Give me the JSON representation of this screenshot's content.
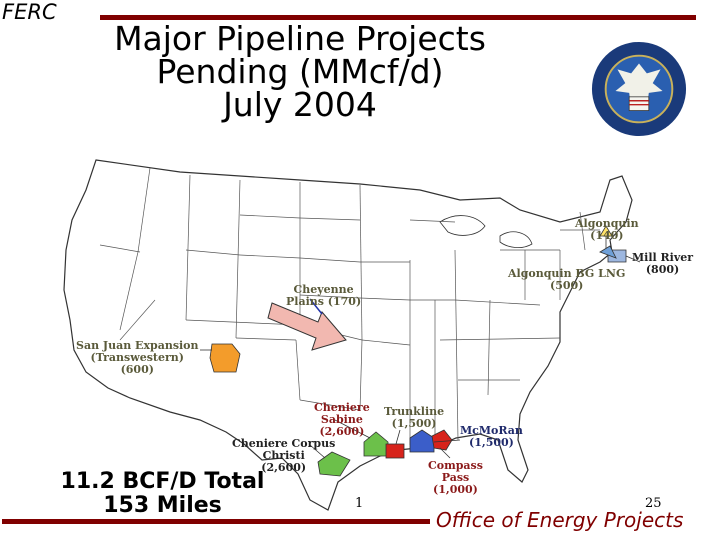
{
  "header": {
    "org": "FERC",
    "title_lines": [
      "Major Pipeline Projects",
      "Pending (MMcf/d)",
      "July 2004"
    ]
  },
  "seal": {
    "icon": "doe-ferc-seal-icon",
    "color": "#1a3a7a"
  },
  "projects": {
    "algonquin": {
      "name": "Algonquin",
      "value": "(140)"
    },
    "mill_river": {
      "name": "Mill River",
      "value": "(800)"
    },
    "algonquin_bg": {
      "name": "Algonquin BG LNG",
      "value": "(500)"
    },
    "cheyenne": {
      "line1": "Cheyenne",
      "line2": "Plains (170)"
    },
    "san_juan": {
      "line1": "San Juan Expansion",
      "line2": "(Transwestern)",
      "value": "(600)"
    },
    "cheniere_sabine": {
      "line1": "Cheniere",
      "line2": "Sabine",
      "value": "(2,600)"
    },
    "trunkline": {
      "name": "Trunkline",
      "value": "(1,500)"
    },
    "mcmoran": {
      "name": "McMoRan",
      "value": "(1,500)"
    },
    "cheniere_cc": {
      "line1": "Cheniere Corpus",
      "line2": "Christi",
      "value": "(2,600)"
    },
    "compass": {
      "line1": "Compass",
      "line2": "Pass",
      "value": "(1,000)"
    }
  },
  "summary": {
    "line1": "11.2 BCF/D Total",
    "line2": "153 Miles"
  },
  "footer": {
    "text": "Office of Energy Projects",
    "page_left": "1",
    "page_right": "25"
  },
  "colors": {
    "accent": "#800000",
    "arrow": "#f2b8b0",
    "cheyenne_line": "#2233aa",
    "label": "#5a5a3a"
  }
}
